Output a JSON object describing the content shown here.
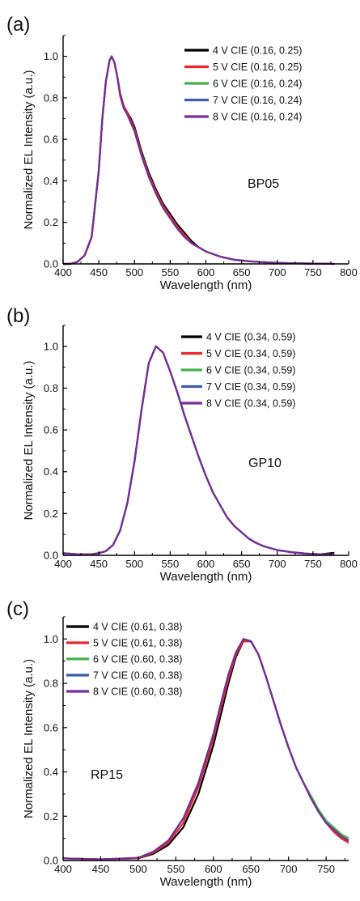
{
  "chart_data": [
    {
      "panel": "(a)",
      "type": "line",
      "xlabel": "Wavelength (nm)",
      "ylabel": "Normalized EL Intensity (a.u.)",
      "xlim": [
        400,
        800
      ],
      "ylim": [
        0.0,
        1.1
      ],
      "xticks": [
        400,
        450,
        500,
        550,
        600,
        650,
        700,
        750,
        800
      ],
      "yticks": [
        0.0,
        0.2,
        0.4,
        0.6,
        0.8,
        1.0
      ],
      "annotation": "BP05",
      "legend_position": "top-right",
      "x": [
        400,
        410,
        420,
        430,
        440,
        450,
        455,
        460,
        465,
        468,
        472,
        476,
        480,
        485,
        490,
        495,
        500,
        505,
        510,
        520,
        530,
        540,
        550,
        560,
        570,
        580,
        590,
        600,
        620,
        640,
        660,
        680,
        700,
        720,
        740,
        760,
        780
      ],
      "series": [
        {
          "name": "4 V CIE (0.16, 0.25)",
          "color": "#000000",
          "values": [
            0.0,
            0.0,
            0.01,
            0.04,
            0.13,
            0.45,
            0.7,
            0.88,
            0.98,
            1.0,
            0.97,
            0.9,
            0.82,
            0.76,
            0.73,
            0.7,
            0.66,
            0.6,
            0.54,
            0.44,
            0.36,
            0.29,
            0.24,
            0.19,
            0.15,
            0.11,
            0.08,
            0.06,
            0.035,
            0.02,
            0.013,
            0.008,
            0.005,
            0.003,
            0.002,
            0.001,
            0.0
          ]
        },
        {
          "name": "5 V CIE (0.16, 0.25)",
          "color": "#e8262b",
          "values": [
            0.0,
            0.0,
            0.01,
            0.04,
            0.13,
            0.45,
            0.7,
            0.88,
            0.98,
            1.0,
            0.97,
            0.9,
            0.82,
            0.76,
            0.73,
            0.69,
            0.65,
            0.59,
            0.53,
            0.43,
            0.35,
            0.28,
            0.23,
            0.18,
            0.14,
            0.1,
            0.08,
            0.06,
            0.035,
            0.02,
            0.013,
            0.008,
            0.005,
            0.003,
            0.002,
            0.001,
            0.0
          ]
        },
        {
          "name": "6 V CIE (0.16, 0.24)",
          "color": "#46b147",
          "values": [
            0.0,
            0.0,
            0.01,
            0.04,
            0.13,
            0.45,
            0.7,
            0.88,
            0.98,
            1.0,
            0.97,
            0.9,
            0.81,
            0.75,
            0.72,
            0.68,
            0.64,
            0.58,
            0.52,
            0.42,
            0.34,
            0.27,
            0.22,
            0.17,
            0.13,
            0.1,
            0.08,
            0.06,
            0.035,
            0.02,
            0.013,
            0.008,
            0.005,
            0.003,
            0.002,
            0.001,
            0.0
          ]
        },
        {
          "name": "7 V CIE (0.16, 0.24)",
          "color": "#3a5eab",
          "values": [
            0.0,
            0.0,
            0.01,
            0.04,
            0.13,
            0.45,
            0.7,
            0.88,
            0.98,
            1.0,
            0.97,
            0.9,
            0.81,
            0.75,
            0.72,
            0.68,
            0.64,
            0.58,
            0.52,
            0.42,
            0.34,
            0.27,
            0.22,
            0.17,
            0.13,
            0.1,
            0.08,
            0.06,
            0.035,
            0.02,
            0.013,
            0.008,
            0.005,
            0.003,
            0.002,
            0.001,
            0.0
          ]
        },
        {
          "name": "8 V CIE (0.16, 0.24)",
          "color": "#7a2d96",
          "values": [
            0.0,
            0.0,
            0.01,
            0.04,
            0.13,
            0.45,
            0.7,
            0.88,
            0.98,
            1.0,
            0.97,
            0.9,
            0.81,
            0.75,
            0.72,
            0.68,
            0.64,
            0.58,
            0.52,
            0.42,
            0.34,
            0.27,
            0.22,
            0.17,
            0.13,
            0.1,
            0.08,
            0.06,
            0.035,
            0.02,
            0.013,
            0.008,
            0.005,
            0.003,
            0.002,
            0.001,
            0.0
          ]
        }
      ]
    },
    {
      "panel": "(b)",
      "type": "line",
      "xlabel": "Wavelength (nm)",
      "ylabel": "Normalized EL Intensity (a.u.)",
      "xlim": [
        400,
        800
      ],
      "ylim": [
        0.0,
        1.1
      ],
      "xticks": [
        400,
        450,
        500,
        550,
        600,
        650,
        700,
        750,
        800
      ],
      "yticks": [
        0.0,
        0.2,
        0.4,
        0.6,
        0.8,
        1.0
      ],
      "annotation": "GP10",
      "legend_position": "top-right",
      "x": [
        400,
        420,
        440,
        450,
        460,
        470,
        480,
        490,
        500,
        510,
        520,
        530,
        540,
        550,
        560,
        570,
        580,
        590,
        600,
        610,
        620,
        630,
        640,
        650,
        660,
        670,
        680,
        690,
        700,
        720,
        740,
        760,
        780
      ],
      "series": [
        {
          "name": "4 V CIE (0.34, 0.59)",
          "color": "#000000",
          "values": [
            0.01,
            0.005,
            0.005,
            0.01,
            0.02,
            0.05,
            0.12,
            0.25,
            0.45,
            0.7,
            0.92,
            1.0,
            0.97,
            0.88,
            0.78,
            0.67,
            0.57,
            0.47,
            0.38,
            0.3,
            0.24,
            0.18,
            0.14,
            0.11,
            0.08,
            0.06,
            0.045,
            0.035,
            0.025,
            0.015,
            0.008,
            0.005,
            0.012
          ]
        },
        {
          "name": "5 V CIE (0.34, 0.59)",
          "color": "#e8262b",
          "values": [
            0.01,
            0.005,
            0.005,
            0.01,
            0.02,
            0.05,
            0.12,
            0.25,
            0.45,
            0.7,
            0.92,
            1.0,
            0.97,
            0.88,
            0.78,
            0.67,
            0.57,
            0.47,
            0.38,
            0.3,
            0.24,
            0.18,
            0.14,
            0.11,
            0.08,
            0.06,
            0.045,
            0.035,
            0.025,
            0.015,
            0.008,
            0.005,
            0.005
          ]
        },
        {
          "name": "6 V CIE (0.34, 0.59)",
          "color": "#46b147",
          "values": [
            0.01,
            0.005,
            0.005,
            0.01,
            0.02,
            0.05,
            0.12,
            0.25,
            0.45,
            0.7,
            0.92,
            1.0,
            0.97,
            0.88,
            0.78,
            0.67,
            0.57,
            0.47,
            0.38,
            0.3,
            0.24,
            0.18,
            0.14,
            0.11,
            0.08,
            0.06,
            0.045,
            0.035,
            0.025,
            0.015,
            0.008,
            0.005,
            0.005
          ]
        },
        {
          "name": "7 V CIE (0.34, 0.59)",
          "color": "#3a5eab",
          "values": [
            0.01,
            0.005,
            0.005,
            0.01,
            0.02,
            0.05,
            0.12,
            0.25,
            0.45,
            0.7,
            0.92,
            1.0,
            0.97,
            0.88,
            0.78,
            0.67,
            0.57,
            0.47,
            0.38,
            0.3,
            0.24,
            0.18,
            0.14,
            0.11,
            0.08,
            0.06,
            0.045,
            0.035,
            0.025,
            0.015,
            0.008,
            0.005,
            0.005
          ]
        },
        {
          "name": "8 V CIE (0.34, 0.59)",
          "color": "#7a2d96",
          "values": [
            0.01,
            0.005,
            0.005,
            0.01,
            0.02,
            0.05,
            0.12,
            0.25,
            0.45,
            0.7,
            0.92,
            1.0,
            0.97,
            0.88,
            0.78,
            0.67,
            0.57,
            0.47,
            0.38,
            0.3,
            0.24,
            0.18,
            0.14,
            0.11,
            0.08,
            0.06,
            0.045,
            0.035,
            0.025,
            0.015,
            0.008,
            0.005,
            0.005
          ]
        }
      ]
    },
    {
      "panel": "(c)",
      "type": "line",
      "xlabel": "Wavelength (nm)",
      "ylabel": "Normalized EL Intensity (a.u.)",
      "xlim": [
        400,
        780
      ],
      "ylim": [
        0.0,
        1.1
      ],
      "xticks": [
        400,
        450,
        500,
        550,
        600,
        650,
        700,
        750
      ],
      "yticks": [
        0.0,
        0.2,
        0.4,
        0.6,
        0.8,
        1.0
      ],
      "annotation": "RP15",
      "legend_position": "top-left",
      "x": [
        400,
        450,
        500,
        520,
        540,
        560,
        580,
        600,
        610,
        620,
        630,
        640,
        650,
        660,
        670,
        680,
        690,
        700,
        710,
        720,
        730,
        740,
        750,
        760,
        770,
        780
      ],
      "series": [
        {
          "name": "4 V CIE (0.61, 0.38)",
          "color": "#000000",
          "values": [
            0.01,
            0.005,
            0.01,
            0.03,
            0.07,
            0.15,
            0.3,
            0.52,
            0.66,
            0.8,
            0.92,
            0.99,
            0.99,
            0.93,
            0.83,
            0.72,
            0.61,
            0.51,
            0.42,
            0.35,
            0.28,
            0.22,
            0.17,
            0.14,
            0.11,
            0.09
          ]
        },
        {
          "name": "5 V CIE (0.61, 0.38)",
          "color": "#e8262b",
          "values": [
            0.01,
            0.005,
            0.01,
            0.035,
            0.08,
            0.17,
            0.33,
            0.55,
            0.69,
            0.82,
            0.93,
            0.99,
            0.99,
            0.93,
            0.83,
            0.72,
            0.61,
            0.51,
            0.42,
            0.35,
            0.28,
            0.22,
            0.17,
            0.13,
            0.1,
            0.08
          ]
        },
        {
          "name": "6 V CIE (0.60, 0.38)",
          "color": "#46b147",
          "values": [
            0.01,
            0.005,
            0.012,
            0.04,
            0.09,
            0.19,
            0.35,
            0.57,
            0.71,
            0.84,
            0.94,
            1.0,
            0.99,
            0.93,
            0.83,
            0.72,
            0.61,
            0.51,
            0.42,
            0.35,
            0.29,
            0.23,
            0.18,
            0.15,
            0.12,
            0.1
          ]
        },
        {
          "name": "7 V CIE (0.60, 0.38)",
          "color": "#3a5eab",
          "values": [
            0.01,
            0.005,
            0.012,
            0.04,
            0.09,
            0.19,
            0.35,
            0.57,
            0.71,
            0.84,
            0.94,
            1.0,
            0.99,
            0.93,
            0.83,
            0.72,
            0.61,
            0.51,
            0.42,
            0.35,
            0.28,
            0.22,
            0.17,
            0.14,
            0.11,
            0.09
          ]
        },
        {
          "name": "8 V CIE (0.60, 0.38)",
          "color": "#7a2d96",
          "values": [
            0.01,
            0.005,
            0.012,
            0.04,
            0.09,
            0.19,
            0.35,
            0.57,
            0.71,
            0.84,
            0.94,
            1.0,
            0.99,
            0.93,
            0.83,
            0.72,
            0.61,
            0.51,
            0.42,
            0.35,
            0.28,
            0.22,
            0.17,
            0.14,
            0.11,
            0.09
          ]
        }
      ]
    }
  ]
}
